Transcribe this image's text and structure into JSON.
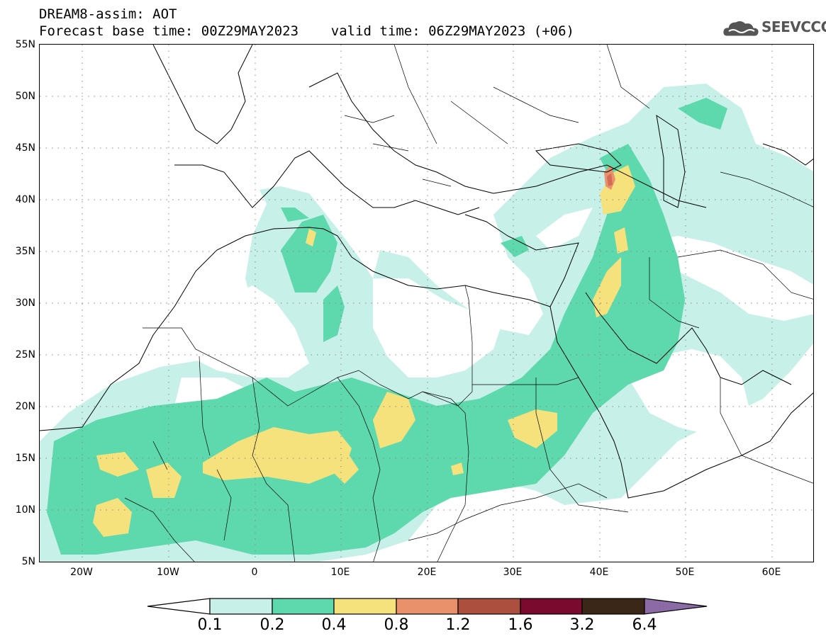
{
  "title": {
    "line1": "DREAM8-assim: AOT",
    "line2": "Forecast base time: 00Z29MAY2023    valid time: 06Z29MAY2023 (+06)"
  },
  "logo": {
    "text": "SEEVCCC",
    "icon": "cloud-icon"
  },
  "map": {
    "lat_labels": [
      "55N",
      "50N",
      "45N",
      "40N",
      "35N",
      "30N",
      "25N",
      "20N",
      "15N",
      "10N",
      "5N"
    ],
    "lon_labels": [
      "20W",
      "10W",
      "0",
      "10E",
      "20E",
      "30E",
      "40E",
      "50E",
      "60E"
    ],
    "extent": {
      "lon_min": -25,
      "lon_max": 65,
      "lat_min": 5,
      "lat_max": 55
    }
  },
  "colorbar": {
    "labels": [
      "0.1",
      "0.2",
      "0.4",
      "0.8",
      "1.2",
      "1.6",
      "3.2",
      "6.4"
    ],
    "colors": [
      "#ffffff",
      "#c6f0e8",
      "#5ed9ae",
      "#f5e27c",
      "#e8916a",
      "#ad4f3f",
      "#7a0a2e",
      "#3b2717",
      "#8b6aa5"
    ]
  }
}
